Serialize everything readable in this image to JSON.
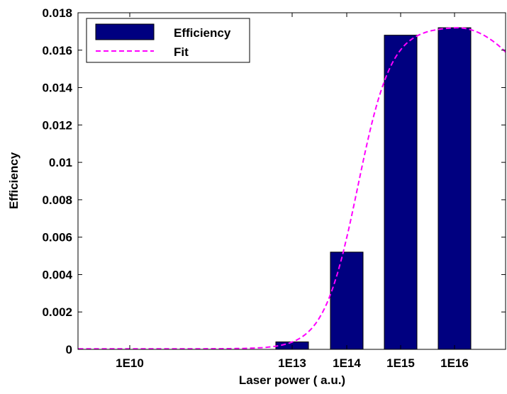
{
  "chart_data": {
    "type": "bar",
    "xlabel": "Laser power ( a.u.)",
    "ylabel": "Efficiency",
    "ylim": [
      0,
      0.018
    ],
    "yticks": [
      "0",
      "0.002",
      "0.004",
      "0.006",
      "0.008",
      "0.01",
      "0.012",
      "0.014",
      "0.016",
      "0.018"
    ],
    "xticks": [
      "1E10",
      "1E13",
      "1E14",
      "1E15",
      "1E16"
    ],
    "bar_color": "#000080",
    "fit_color": "#ff00ff",
    "series": [
      {
        "name": "Efficiency",
        "type": "bar",
        "categories": [
          "1E13",
          "1E14",
          "1E15",
          "1E16"
        ],
        "values": [
          0.0004,
          0.0052,
          0.0168,
          0.0172
        ]
      },
      {
        "name": "Fit",
        "type": "line",
        "style": "dashed",
        "x": [
          "1E10",
          "1E13",
          "1E14",
          "1E15",
          "1E16"
        ],
        "x_numeric": [
          10,
          13,
          14,
          15,
          16
        ],
        "values": [
          3e-05,
          0.00045,
          0.0058,
          0.0167,
          0.0172
        ]
      }
    ],
    "legend": {
      "placement": "top-left",
      "entries": [
        "Efficiency",
        "Fit"
      ]
    },
    "grid": false
  }
}
